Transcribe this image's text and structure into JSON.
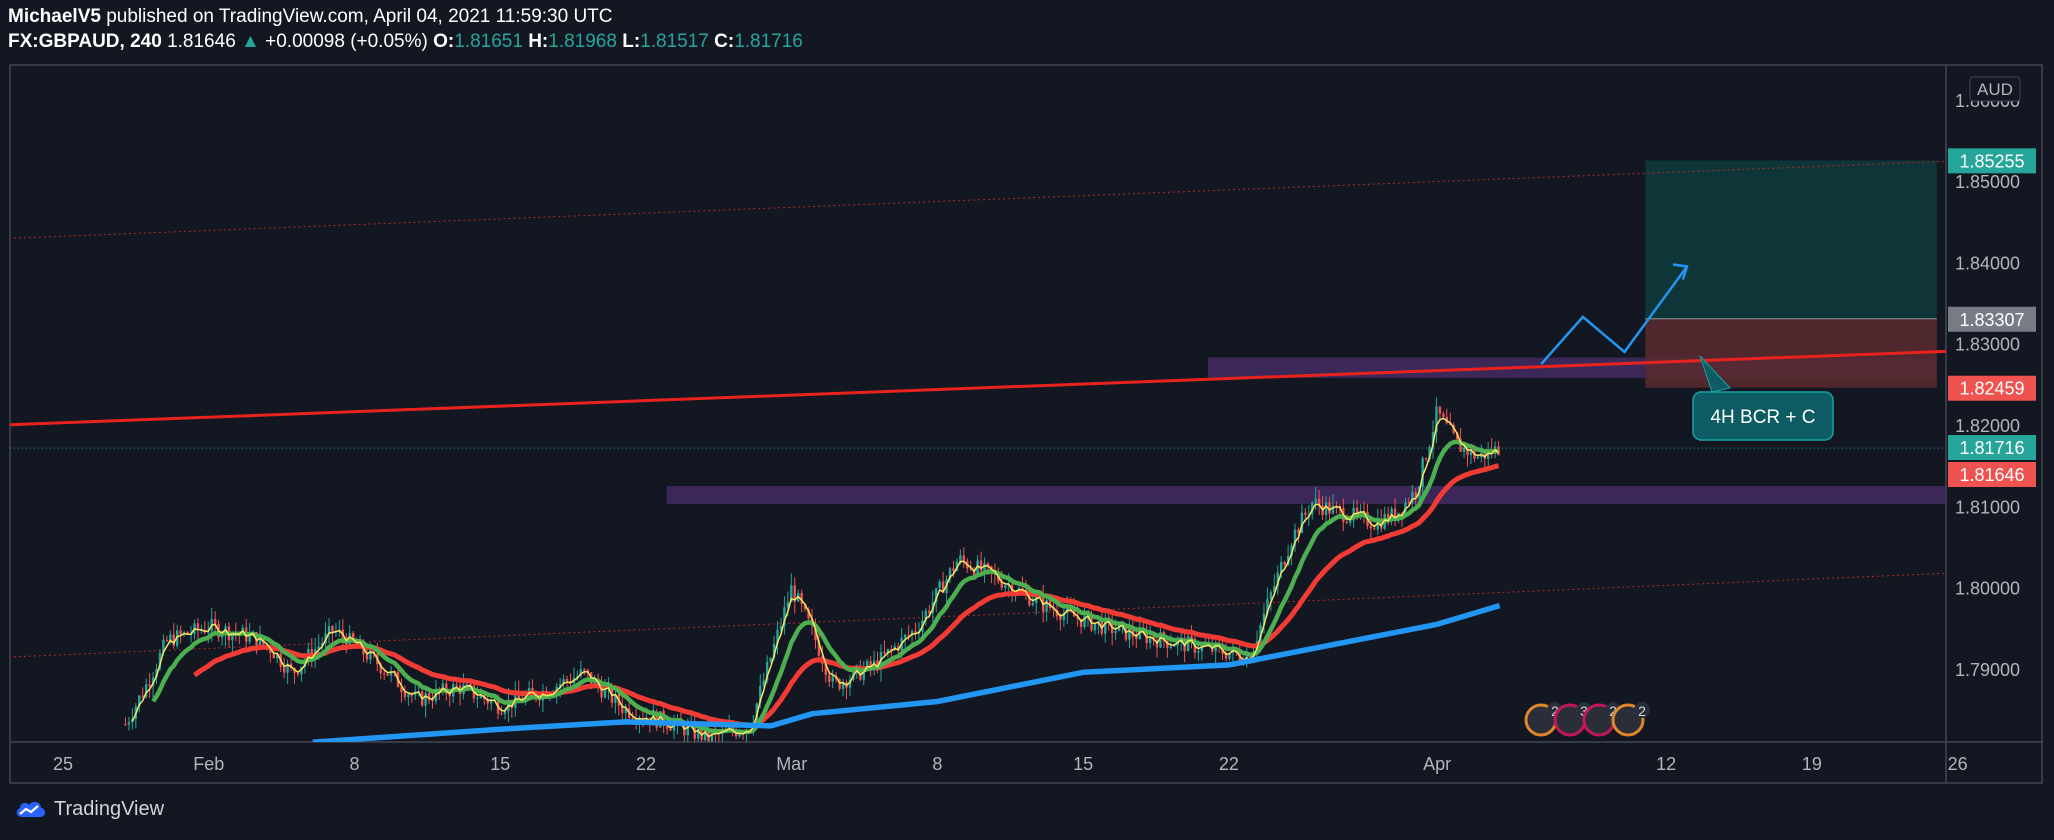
{
  "header": {
    "author": "MichaelV5",
    "published_text": "published on TradingView.com, April 04, 2021 11:59:30 UTC",
    "symbol": "FX:GBPAUD, 240",
    "last": "1.81646",
    "change": "+0.00098 (+0.05%)",
    "o_label": "O:",
    "o": "1.81651",
    "h_label": "H:",
    "h": "1.81968",
    "l_label": "L:",
    "l": "1.81517",
    "c_label": "C:",
    "c": "1.81716"
  },
  "footer": {
    "brand": "TradingView",
    "logo_icon": "tradingview-cloud-icon"
  },
  "colors": {
    "background": "#131722",
    "up": "#26a69a",
    "down": "#ef5350",
    "ma_fast": "#f5e663",
    "ma_green": "#4caf50",
    "ma_red": "#f23b34",
    "ma_blue": "#2196f3",
    "trendline": "#e8231e",
    "zone": "#4a2f6b",
    "target": "#0e3b3b",
    "stop": "#5a2a2e"
  },
  "chart_data": {
    "type": "candlestick",
    "symbol": "FX:GBPAUD",
    "interval": "240",
    "y_currency": "AUD",
    "ylim": [
      1.7815,
      1.8666
    ],
    "y_ticks": [
      "1.79000",
      "1.80000",
      "1.81000",
      "1.82000",
      "1.83000",
      "1.84000",
      "1.85000",
      "1.86000"
    ],
    "x_ticks": [
      "25",
      "Feb",
      "8",
      "15",
      "22",
      "Mar",
      "8",
      "15",
      "22",
      "Apr",
      "12",
      "19",
      "26"
    ],
    "price_labels": [
      {
        "label": "1.85255",
        "role": "target",
        "color": "#26a69a"
      },
      {
        "label": "1.83307",
        "role": "entry",
        "color": "#787b86"
      },
      {
        "label": "1.82459",
        "role": "stop",
        "color": "#ef5350"
      },
      {
        "label": "1.81716",
        "role": "close",
        "color": "#26a69a"
      },
      {
        "label": "1.81646",
        "role": "last",
        "color": "#ef5350"
      }
    ],
    "annotation": {
      "text": "4H BCR + C"
    },
    "event_badges": [
      "2",
      "3",
      "2",
      "2"
    ],
    "resistance_line": {
      "from": {
        "date": "2021-01-20",
        "price": 1.8198
      },
      "to": {
        "date": "2021-05-02",
        "price": 1.8297
      }
    },
    "channel_upper": {
      "from": {
        "date": "2021-01-20",
        "price": 1.8427
      },
      "to": {
        "date": "2021-05-02",
        "price": 1.8531
      }
    },
    "channel_lower": {
      "from": {
        "date": "2021-01-20",
        "price": 1.7912
      },
      "to": {
        "date": "2021-05-02",
        "price": 1.8025
      }
    },
    "zones": [
      {
        "from": "2021-02-23",
        "to": "2021-04-28",
        "top": 1.8125,
        "bottom": 1.8103
      },
      {
        "from": "2021-03-21",
        "to": "2021-04-25",
        "top": 1.8283,
        "bottom": 1.8258
      }
    ],
    "position": {
      "from": "2021-04-11",
      "to": "2021-04-25",
      "entry": 1.83307,
      "target": 1.85255,
      "stop": 1.82459
    },
    "projection_path": [
      {
        "date": "2021-04-06",
        "price": 1.8275
      },
      {
        "date": "2021-04-08",
        "price": 1.8333
      },
      {
        "date": "2021-04-10",
        "price": 1.829
      },
      {
        "date": "2021-04-13",
        "price": 1.8395
      }
    ],
    "price_path": [
      {
        "date": "2021-01-28",
        "price": 1.7832
      },
      {
        "date": "2021-01-29",
        "price": 1.788
      },
      {
        "date": "2021-01-30",
        "price": 1.7935
      },
      {
        "date": "2021-02-01",
        "price": 1.7952
      },
      {
        "date": "2021-02-03",
        "price": 1.794
      },
      {
        "date": "2021-02-04",
        "price": 1.7925
      },
      {
        "date": "2021-02-05",
        "price": 1.7895
      },
      {
        "date": "2021-02-07",
        "price": 1.7948
      },
      {
        "date": "2021-02-09",
        "price": 1.791
      },
      {
        "date": "2021-02-11",
        "price": 1.7862
      },
      {
        "date": "2021-02-13",
        "price": 1.7878
      },
      {
        "date": "2021-02-15",
        "price": 1.7855
      },
      {
        "date": "2021-02-17",
        "price": 1.7872
      },
      {
        "date": "2021-02-19",
        "price": 1.7895
      },
      {
        "date": "2021-02-21",
        "price": 1.785
      },
      {
        "date": "2021-02-23",
        "price": 1.7835
      },
      {
        "date": "2021-02-25",
        "price": 1.7815
      },
      {
        "date": "2021-02-27",
        "price": 1.783
      },
      {
        "date": "2021-03-01",
        "price": 1.8
      },
      {
        "date": "2021-03-02",
        "price": 1.7945
      },
      {
        "date": "2021-03-03",
        "price": 1.788
      },
      {
        "date": "2021-03-05",
        "price": 1.7905
      },
      {
        "date": "2021-03-07",
        "price": 1.795
      },
      {
        "date": "2021-03-09",
        "price": 1.8035
      },
      {
        "date": "2021-03-11",
        "price": 1.801
      },
      {
        "date": "2021-03-13",
        "price": 1.798
      },
      {
        "date": "2021-03-15",
        "price": 1.796
      },
      {
        "date": "2021-03-17",
        "price": 1.7945
      },
      {
        "date": "2021-03-19",
        "price": 1.7935
      },
      {
        "date": "2021-03-21",
        "price": 1.7925
      },
      {
        "date": "2021-03-23",
        "price": 1.7915
      },
      {
        "date": "2021-03-24",
        "price": 1.799
      },
      {
        "date": "2021-03-25",
        "price": 1.806
      },
      {
        "date": "2021-03-26",
        "price": 1.8105
      },
      {
        "date": "2021-03-27",
        "price": 1.8095
      },
      {
        "date": "2021-03-29",
        "price": 1.808
      },
      {
        "date": "2021-03-30",
        "price": 1.809
      },
      {
        "date": "2021-03-31",
        "price": 1.812
      },
      {
        "date": "2021-04-01",
        "price": 1.8215
      },
      {
        "date": "2021-04-02",
        "price": 1.8175
      },
      {
        "date": "2021-04-03",
        "price": 1.816
      },
      {
        "date": "2021-04-04",
        "price": 1.8172
      }
    ],
    "ma_blue": [
      {
        "date": "2021-02-06",
        "price": 1.781
      },
      {
        "date": "2021-02-15",
        "price": 1.7826
      },
      {
        "date": "2021-02-21",
        "price": 1.7835
      },
      {
        "date": "2021-02-28",
        "price": 1.783
      },
      {
        "date": "2021-03-02",
        "price": 1.7845
      },
      {
        "date": "2021-03-08",
        "price": 1.786
      },
      {
        "date": "2021-03-15",
        "price": 1.7896
      },
      {
        "date": "2021-03-22",
        "price": 1.7905
      },
      {
        "date": "2021-03-26",
        "price": 1.7925
      },
      {
        "date": "2021-04-01",
        "price": 1.7955
      },
      {
        "date": "2021-04-04",
        "price": 1.7978
      }
    ]
  }
}
